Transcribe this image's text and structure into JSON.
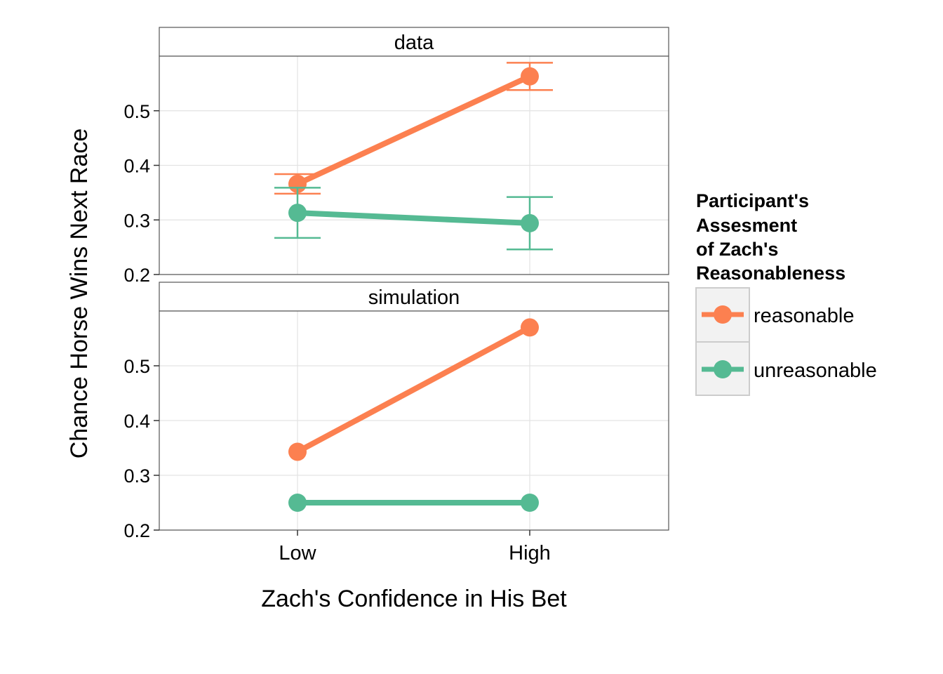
{
  "chart_data": {
    "type": "line",
    "x_axis_label": "Zach's Confidence in His Bet",
    "y_axis_label": "Chance Horse Wins Next Race",
    "categories": [
      "Low",
      "High"
    ],
    "ylim": [
      0.2,
      0.6
    ],
    "y_ticks": [
      "0.2",
      "0.3",
      "0.4",
      "0.5"
    ],
    "grid": true,
    "legend": {
      "title_lines": [
        "Participant's",
        "Assesment",
        "of Zach's",
        "Reasonableness"
      ],
      "position": "right",
      "entries": [
        "reasonable",
        "unreasonable"
      ]
    },
    "colors": {
      "reasonable": "#FC8050",
      "unreasonable": "#55BA93"
    },
    "panels": [
      {
        "label": "data",
        "series": [
          {
            "name": "reasonable",
            "values": [
              0.366,
              0.563
            ],
            "err_low": [
              0.348,
              0.538
            ],
            "err_high": [
              0.384,
              0.588
            ]
          },
          {
            "name": "unreasonable",
            "values": [
              0.313,
              0.294
            ],
            "err_low": [
              0.267,
              0.246
            ],
            "err_high": [
              0.359,
              0.342
            ]
          }
        ]
      },
      {
        "label": "simulation",
        "series": [
          {
            "name": "reasonable",
            "values": [
              0.343,
              0.57
            ]
          },
          {
            "name": "unreasonable",
            "values": [
              0.25,
              0.25
            ]
          }
        ]
      }
    ]
  }
}
